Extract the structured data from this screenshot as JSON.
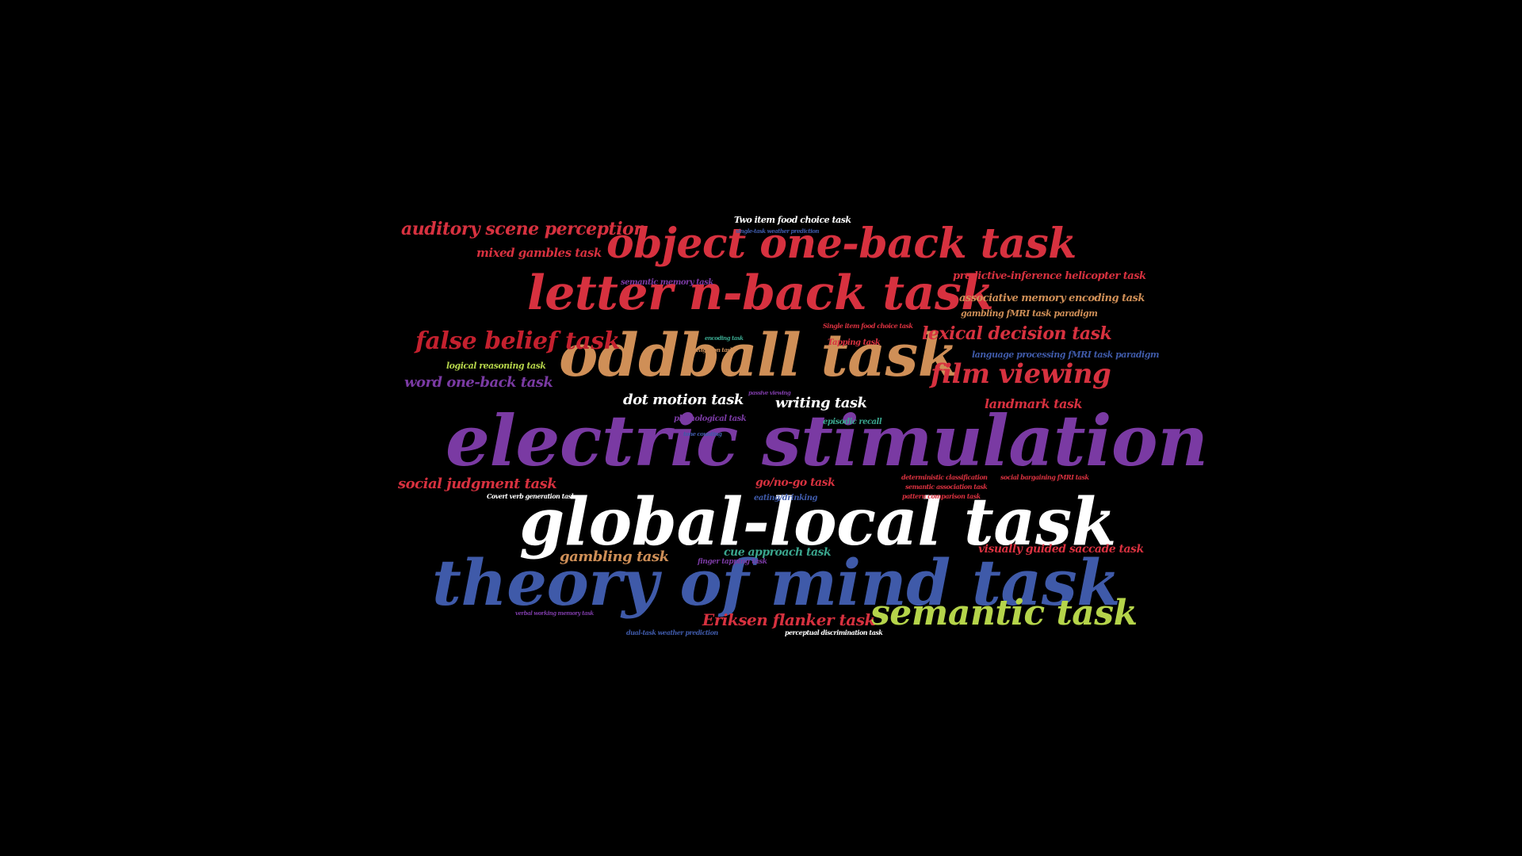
{
  "word_cloud": {
    "background": "#000000",
    "palette": [
      "#d7313f",
      "#cf8f57",
      "#7a3aa3",
      "#ffffff",
      "#3f5aa9",
      "#b5d44a",
      "#3aa58d"
    ],
    "words": {
      "electric_stimulation": "electric stimulation",
      "global_local_task": "global-local task",
      "theory_of_mind_task": "theory of mind task",
      "oddball_task": "oddball task",
      "letter_n_back_task": "letter n-back task",
      "object_one_back_task": "object one-back task",
      "semantic_task": "semantic task",
      "film_viewing": "film viewing",
      "false_belief_task": "false belief task",
      "auditory_scene_perception": "auditory scene perception",
      "lexical_decision_task": "lexical decision task",
      "eriksen_flanker_task": "Eriksen flanker task",
      "word_one_back_task": "word one-back task",
      "social_judgment_task": "social judgment task",
      "dot_motion_task": "dot motion task",
      "writing_task": "writing task",
      "gambling_task": "gambling task",
      "mixed_gambles_task": "mixed gambles task",
      "landmark_task": "landmark task",
      "visually_guided_saccade_task": "visually guided saccade task",
      "go_no_go_task": "go/no-go task",
      "cue_approach_task": "cue approach task",
      "associative_memory_encoding_task": "associative memory encoding task",
      "predictive_inference_helicopter_task": "predictive-inference helicopter task",
      "two_item_food_choice_task": "Two item food choice task",
      "language_processing_fmri_task_paradigm": "language processing fMRI task paradigm",
      "gambling_fmri_task_paradigm": "gambling fMRI task paradigm",
      "logical_reasoning_task": "logical reasoning task",
      "semantic_memory_task": "semantic memory task",
      "phonological_task": "phonological task",
      "episodic_recall": "episodic recall",
      "tapping_task": "Tapping task",
      "single_item_food_choice_task": "Single item food choice task",
      "eating_drinking": "eating/drinking",
      "finger_tapping_task": "finger tapping task",
      "covert_verb_generation_task": "Covert verb generation task",
      "deterministic_classification": "deterministic classification",
      "semantic_association_task": "semantic association task",
      "pattern_comparison_task": "pattern comparison task",
      "social_bargaining_fmri_task": "social bargaining fMRI task",
      "perceptual_discrimination_task": "perceptual discrimination task",
      "dual_task_weather_prediction": "dual-task weather prediction",
      "verbal_working_memory_task": "verbal working memory task",
      "single_task_weather_prediction": "single-task weather prediction",
      "tone_counting": "tone counting",
      "passive_viewing": "passive viewing",
      "encoding_task": "encoding task",
      "navigation_task": "navigation task"
    }
  }
}
